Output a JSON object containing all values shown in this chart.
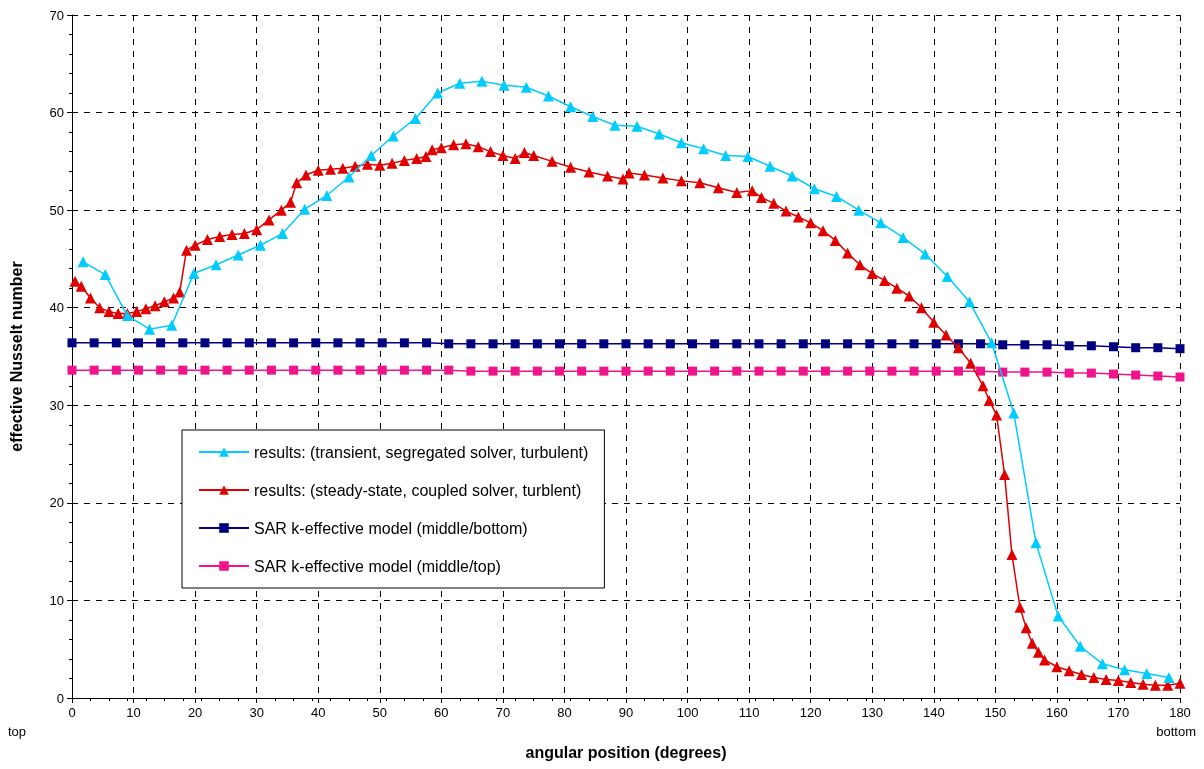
{
  "chart_data": {
    "type": "line",
    "xlabel": "angular position (degrees)",
    "ylabel": "effective Nusselt number",
    "xlim": [
      0,
      180
    ],
    "xticks": [
      0,
      10,
      20,
      30,
      40,
      50,
      60,
      70,
      80,
      90,
      100,
      110,
      120,
      130,
      140,
      150,
      160,
      170,
      180
    ],
    "ylim": [
      0,
      70
    ],
    "yticks": [
      0,
      10,
      20,
      30,
      40,
      50,
      60,
      70
    ],
    "grid": true,
    "legend": "bottom left",
    "line_style": "solid",
    "annotations": [
      "top",
      "bottom"
    ],
    "series": [
      {
        "name": "results: (transient, segregated solver, turbulent)",
        "color": "#00ccff",
        "marker": "triangle",
        "x": [
          1.8,
          5.4,
          9,
          12.6,
          16.2,
          19.8,
          23.4,
          27,
          30.6,
          34.2,
          37.8,
          41.4,
          45,
          48.6,
          52.2,
          55.8,
          59.4,
          63,
          66.6,
          70.2,
          73.8,
          77.4,
          81,
          84.6,
          88.2,
          91.8,
          95.4,
          99,
          102.6,
          106.2,
          109.8,
          113.4,
          117,
          120.6,
          124.2,
          127.8,
          131.4,
          135,
          138.6,
          142.2,
          145.8,
          149.4,
          153,
          156.6,
          160.2,
          163.8,
          167.4,
          171,
          174.6,
          178.2
        ],
        "values": [
          44.7,
          43.4,
          39.2,
          37.8,
          38.2,
          43.5,
          44.4,
          45.4,
          46.4,
          47.6,
          50.1,
          51.5,
          53.4,
          55.6,
          57.6,
          59.4,
          62.0,
          63.0,
          63.2,
          62.8,
          62.6,
          61.7,
          60.6,
          59.6,
          58.7,
          58.6,
          57.8,
          56.9,
          56.3,
          55.6,
          55.5,
          54.5,
          53.5,
          52.2,
          51.4,
          50.0,
          48.7,
          47.2,
          45.5,
          43.2,
          40.6,
          36.4,
          29.2,
          15.9,
          8.4,
          5.3,
          3.5,
          2.9,
          2.5,
          2.1
        ]
      },
      {
        "name": "results: (steady-state, coupled solver, turblent)",
        "color": "#e00000",
        "marker": "triangle",
        "x": [
          0.5,
          1.5,
          3,
          4.5,
          6,
          7.5,
          9,
          10.5,
          12,
          13.5,
          15,
          16.5,
          17.5,
          18.6,
          20,
          22,
          24,
          26,
          28,
          30,
          32,
          34,
          35.5,
          36.5,
          38,
          40,
          42,
          44,
          46,
          48,
          50,
          52,
          54,
          56,
          57.5,
          58.5,
          60,
          62,
          64,
          66,
          68,
          70,
          72,
          73.5,
          75,
          78,
          81,
          84,
          87,
          89.5,
          90.5,
          93,
          96,
          99,
          102,
          105,
          108,
          110.5,
          112,
          114,
          116,
          118,
          120,
          122,
          124,
          126,
          128,
          130,
          132,
          134,
          136,
          138,
          140,
          142,
          144,
          146,
          148,
          149,
          150.2,
          151.5,
          152.7,
          154,
          155,
          156,
          157,
          158,
          160,
          162,
          164,
          166,
          168,
          170,
          172,
          174,
          176,
          178,
          180
        ],
        "values": [
          42.7,
          42.2,
          41,
          40,
          39.6,
          39.4,
          39.4,
          39.6,
          39.9,
          40.2,
          40.6,
          41.0,
          41.6,
          45.9,
          46.4,
          47.0,
          47.3,
          47.5,
          47.6,
          48.0,
          49.0,
          50.0,
          50.8,
          52.8,
          53.6,
          54.1,
          54.2,
          54.3,
          54.5,
          54.7,
          54.6,
          54.8,
          55.1,
          55.3,
          55.5,
          56.2,
          56.4,
          56.7,
          56.8,
          56.5,
          56.0,
          55.6,
          55.3,
          55.9,
          55.6,
          55.0,
          54.4,
          53.9,
          53.5,
          53.2,
          53.8,
          53.6,
          53.3,
          53.0,
          52.8,
          52.3,
          51.8,
          52.0,
          51.3,
          50.7,
          49.9,
          49.3,
          48.7,
          47.9,
          46.9,
          45.6,
          44.4,
          43.5,
          42.8,
          42.0,
          41.2,
          40.0,
          38.5,
          37.2,
          35.9,
          34.3,
          32.0,
          30.5,
          29.0,
          22.9,
          14.7,
          9.3,
          7.2,
          5.6,
          4.7,
          3.9,
          3.2,
          2.8,
          2.4,
          2.1,
          1.9,
          1.8,
          1.6,
          1.4,
          1.3,
          1.3,
          1.5
        ]
      },
      {
        "name": "SAR k-effective model (middle/bottom)",
        "color": "#000080",
        "marker": "square",
        "x": [
          0,
          3.6,
          7.2,
          10.8,
          14.4,
          18,
          21.6,
          25.2,
          28.8,
          32.4,
          36,
          39.6,
          43.2,
          46.8,
          50.4,
          54,
          57.6,
          61.2,
          64.8,
          68.4,
          72,
          75.6,
          79.2,
          82.8,
          86.4,
          90,
          93.6,
          97.2,
          100.8,
          104.4,
          108,
          111.6,
          115.2,
          118.8,
          122.4,
          126,
          129.6,
          133.2,
          136.8,
          140.4,
          144,
          147.6,
          151.2,
          154.8,
          158.4,
          162,
          165.6,
          169.2,
          172.8,
          176.4,
          180
        ],
        "values": [
          36.4,
          36.4,
          36.4,
          36.4,
          36.4,
          36.4,
          36.4,
          36.4,
          36.4,
          36.4,
          36.4,
          36.4,
          36.4,
          36.4,
          36.4,
          36.4,
          36.4,
          36.3,
          36.3,
          36.3,
          36.3,
          36.3,
          36.3,
          36.3,
          36.3,
          36.3,
          36.3,
          36.3,
          36.3,
          36.3,
          36.3,
          36.3,
          36.3,
          36.3,
          36.3,
          36.3,
          36.3,
          36.3,
          36.3,
          36.3,
          36.3,
          36.3,
          36.2,
          36.2,
          36.2,
          36.1,
          36.1,
          36.0,
          35.9,
          35.9,
          35.8
        ]
      },
      {
        "name": "SAR k-effective model (middle/top)",
        "color": "#f0148c",
        "marker": "square",
        "x": [
          0,
          3.6,
          7.2,
          10.8,
          14.4,
          18,
          21.6,
          25.2,
          28.8,
          32.4,
          36,
          39.6,
          43.2,
          46.8,
          50.4,
          54,
          57.6,
          61.2,
          64.8,
          68.4,
          72,
          75.6,
          79.2,
          82.8,
          86.4,
          90,
          93.6,
          97.2,
          100.8,
          104.4,
          108,
          111.6,
          115.2,
          118.8,
          122.4,
          126,
          129.6,
          133.2,
          136.8,
          140.4,
          144,
          147.6,
          151.2,
          154.8,
          158.4,
          162,
          165.6,
          169.2,
          172.8,
          176.4,
          180
        ],
        "values": [
          33.6,
          33.6,
          33.6,
          33.6,
          33.6,
          33.6,
          33.6,
          33.6,
          33.6,
          33.6,
          33.6,
          33.6,
          33.6,
          33.6,
          33.6,
          33.6,
          33.6,
          33.6,
          33.5,
          33.5,
          33.5,
          33.5,
          33.5,
          33.5,
          33.5,
          33.5,
          33.5,
          33.5,
          33.5,
          33.5,
          33.5,
          33.5,
          33.5,
          33.5,
          33.5,
          33.5,
          33.5,
          33.5,
          33.5,
          33.5,
          33.5,
          33.5,
          33.4,
          33.4,
          33.4,
          33.3,
          33.3,
          33.2,
          33.1,
          33.0,
          32.9
        ]
      }
    ]
  }
}
